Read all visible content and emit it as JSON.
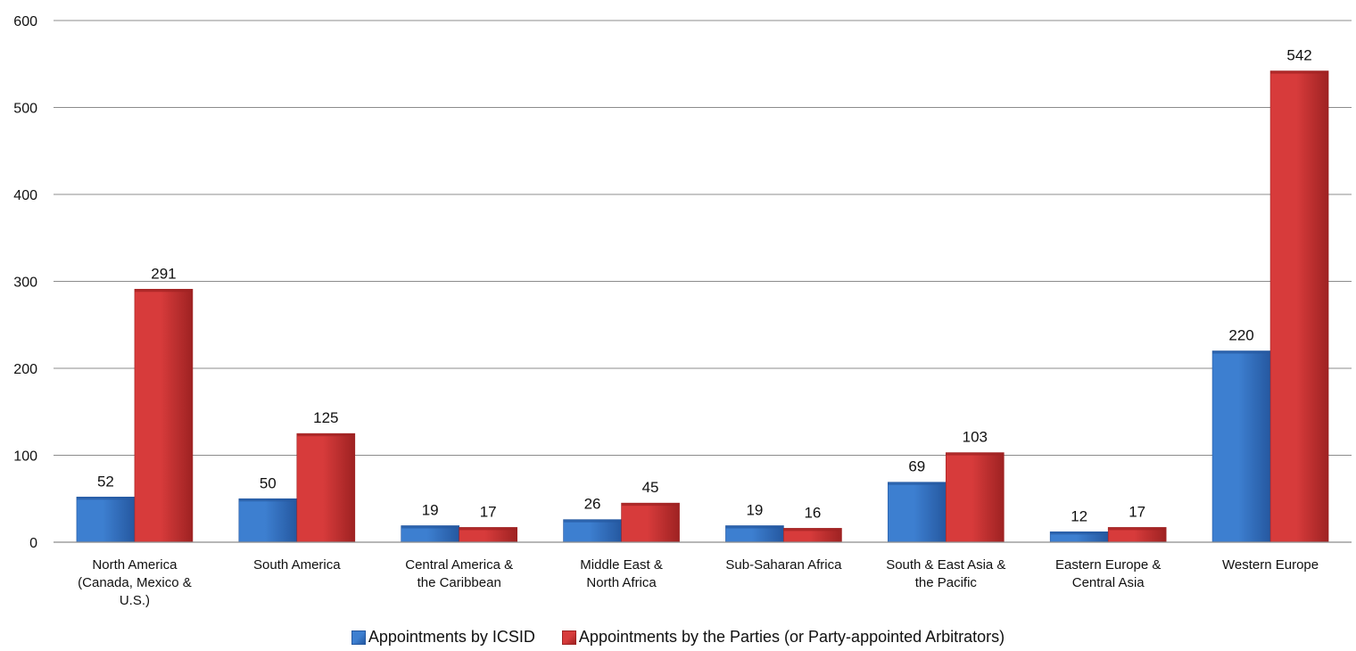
{
  "chart_data": {
    "type": "bar",
    "categories": [
      [
        "North America",
        "(Canada, Mexico &",
        "U.S.)"
      ],
      [
        "South America"
      ],
      [
        "Central America &",
        "the Caribbean"
      ],
      [
        "Middle East &",
        "North Africa"
      ],
      [
        "Sub-Saharan Africa"
      ],
      [
        "South & East Asia &",
        "the Pacific"
      ],
      [
        "Eastern Europe &",
        "Central Asia"
      ],
      [
        "Western Europe"
      ]
    ],
    "series": [
      {
        "name": "Appointments by ICSID",
        "values": [
          52,
          50,
          19,
          26,
          19,
          69,
          12,
          220
        ],
        "color": "#3d7fd0",
        "dark": "#2558a0"
      },
      {
        "name": "Appointments by the Parties (or Party-appointed Arbitrators)",
        "values": [
          291,
          125,
          17,
          45,
          16,
          103,
          17,
          542
        ],
        "color": "#d73b3b",
        "dark": "#9e2222"
      }
    ],
    "ylim": [
      0,
      600
    ],
    "yticks": [
      0,
      100,
      200,
      300,
      400,
      500,
      600
    ],
    "grid": true,
    "legend_position": "bottom"
  }
}
